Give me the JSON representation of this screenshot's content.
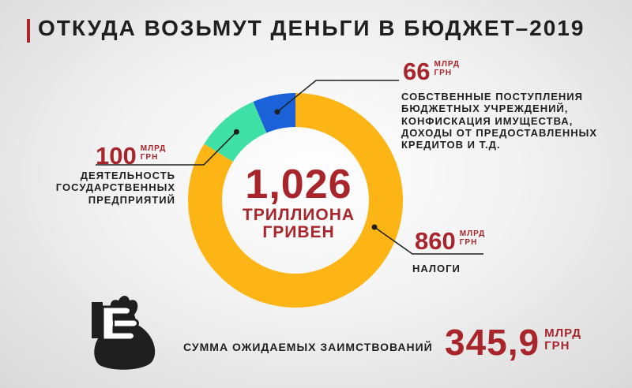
{
  "title": "ОТКУДА ВОЗЬМУТ ДЕНЬГИ В БЮДЖЕТ–2019",
  "colors": {
    "accent": "#a8262b",
    "taxes": "#fdb515",
    "state_enterprises": "#3fe0a5",
    "own_revenues": "#1b62d8",
    "leader_lines": "#1f1f1f"
  },
  "total": {
    "value": "1,026",
    "unit_line1": "ТРИЛЛИОНА",
    "unit_line2": "ГРИВЕН"
  },
  "chart_data": {
    "type": "pie",
    "donut": true,
    "unit": "млрд грн",
    "slices": [
      {
        "value": 860,
        "value_label": "860",
        "unit_line1": "МЛРД",
        "unit_line2": "ГРН",
        "label_lines": [
          "НАЛОГИ"
        ],
        "color": "#fdb515"
      },
      {
        "value": 100,
        "value_label": "100",
        "unit_line1": "МЛРД",
        "unit_line2": "ГРН",
        "label_lines": [
          "ДЕЯТЕЛЬНОСТЬ",
          "ГОСУДАРСТВЕННЫХ",
          "ПРЕДПРИЯТИЙ"
        ],
        "color": "#3fe0a5"
      },
      {
        "value": 66,
        "value_label": "66",
        "unit_line1": "МЛРД",
        "unit_line2": "ГРН",
        "label_lines": [
          "СОБСТВЕННЫЕ ПОСТУПЛЕНИЯ",
          "БЮДЖЕТНЫХ УЧРЕЖДЕНИЙ,",
          "КОНФИСКАЦИЯ ИМУЩЕСТВА,",
          "ДОХОДЫ ОТ ПРЕДОСТАВЛЕННЫХ",
          "КРЕДИТОВ И Т.Д."
        ],
        "color": "#1b62d8"
      }
    ]
  },
  "borrowing": {
    "label": "СУММА ОЖИДАЕМЫХ ЗАИМСТВОВАНИЙ",
    "value": "345,9",
    "unit_line1": "МЛРД",
    "unit_line2": "ГРН"
  },
  "icons": {
    "bag": "money-bag-in-hand-icon"
  }
}
